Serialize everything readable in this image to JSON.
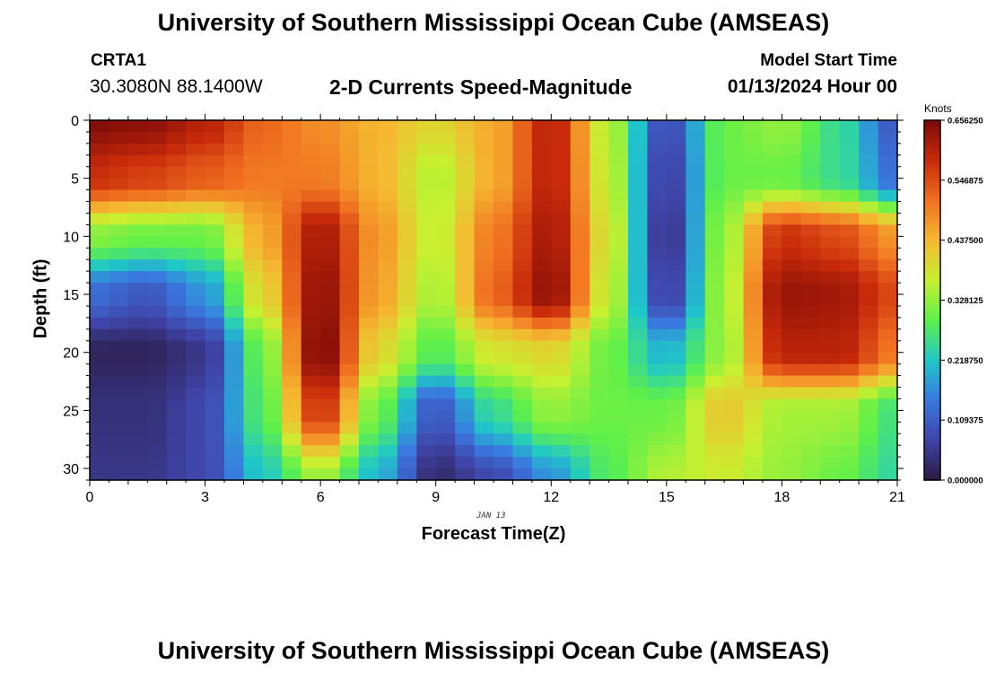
{
  "header": {
    "title": "University of Southern Mississippi Ocean Cube (AMSEAS)",
    "station": "CRTA1",
    "coordinates": "30.3080N  88.1400W",
    "plot_title": "2-D Currents Speed-Magnitude",
    "model_start_label": "Model Start Time",
    "model_start_value": "01/13/2024 Hour 00"
  },
  "footer": {
    "title": "University of Southern Mississippi Ocean Cube (AMSEAS)"
  },
  "chart_data": {
    "type": "heatmap",
    "title": "2-D Currents Speed-Magnitude",
    "xlabel": "Forecast Time(Z)",
    "ylabel": "Depth (ft)",
    "day_label": "JAN 13",
    "xlim": [
      0,
      21
    ],
    "ylim": [
      0,
      31
    ],
    "y_inverted": true,
    "x_ticks": [
      0,
      3,
      6,
      9,
      12,
      15,
      18,
      21
    ],
    "y_ticks": [
      0,
      5,
      10,
      15,
      20,
      25,
      30
    ],
    "colorbar": {
      "unit": "Knots",
      "min": 0.0,
      "max": 0.65625,
      "tick_values": [
        0.0,
        0.109375,
        0.21875,
        0.328125,
        0.4375,
        0.546875,
        0.65625
      ],
      "tick_labels": [
        "0.000000",
        "0.109375",
        "0.218750",
        "0.328125",
        "0.437500",
        "0.546875",
        "0.656250"
      ],
      "colors": [
        "#2a1a40",
        "#3f44a8",
        "#3a78e0",
        "#1fc8c8",
        "#5ef04a",
        "#c8f030",
        "#f5b830",
        "#f07020",
        "#c82a0a",
        "#7c0a08"
      ]
    },
    "grid_cols": 42,
    "grid_rows": 31,
    "anchor_times": [
      0,
      1.5,
      3,
      4.5,
      6,
      7.5,
      9,
      10.5,
      12,
      13.5,
      15,
      16.5,
      18,
      19.5,
      21
    ],
    "anchor_depths": [
      0,
      5,
      10,
      15,
      20,
      25,
      31
    ],
    "values": [
      [
        0.65,
        0.64,
        0.6,
        0.52,
        0.48,
        0.44,
        0.4,
        0.45,
        0.6,
        0.35,
        0.08,
        0.3,
        0.33,
        0.25,
        0.1
      ],
      [
        0.58,
        0.56,
        0.53,
        0.5,
        0.5,
        0.44,
        0.35,
        0.45,
        0.6,
        0.36,
        0.06,
        0.3,
        0.3,
        0.25,
        0.13
      ],
      [
        0.32,
        0.3,
        0.3,
        0.45,
        0.62,
        0.47,
        0.36,
        0.5,
        0.62,
        0.38,
        0.04,
        0.33,
        0.58,
        0.55,
        0.47
      ],
      [
        0.13,
        0.1,
        0.17,
        0.4,
        0.64,
        0.46,
        0.34,
        0.52,
        0.64,
        0.36,
        0.06,
        0.34,
        0.63,
        0.62,
        0.55
      ],
      [
        0.02,
        0.02,
        0.05,
        0.3,
        0.66,
        0.4,
        0.28,
        0.38,
        0.4,
        0.3,
        0.2,
        0.33,
        0.6,
        0.6,
        0.5
      ],
      [
        0.04,
        0.04,
        0.08,
        0.28,
        0.58,
        0.3,
        0.1,
        0.25,
        0.33,
        0.3,
        0.3,
        0.42,
        0.34,
        0.34,
        0.26
      ],
      [
        0.05,
        0.05,
        0.08,
        0.22,
        0.34,
        0.2,
        0.03,
        0.08,
        0.17,
        0.28,
        0.35,
        0.37,
        0.33,
        0.3,
        0.24
      ]
    ]
  }
}
